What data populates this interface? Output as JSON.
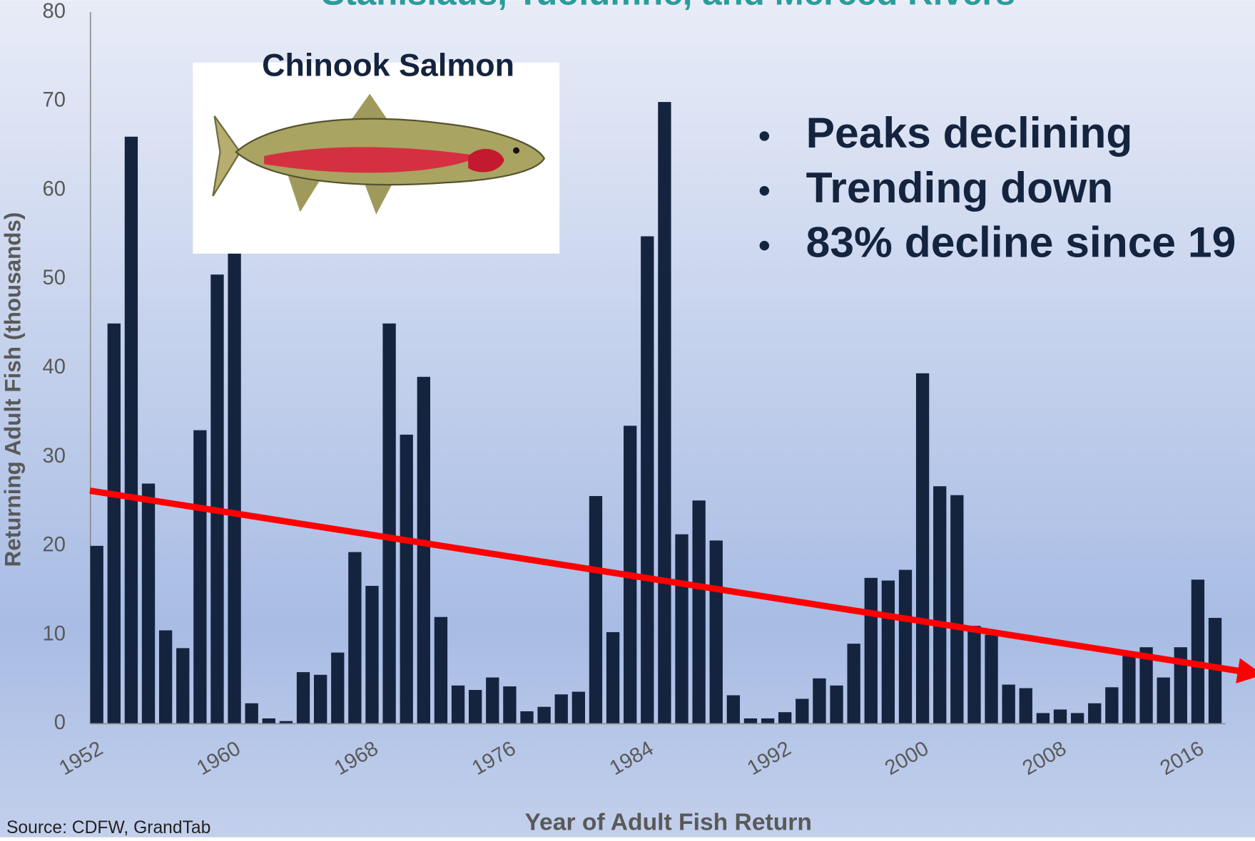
{
  "chart_data": {
    "type": "bar",
    "title": "Stanislaus, Tuolumne, and Merced Rivers",
    "inset_title": "Chinook Salmon",
    "bullets": [
      "Peaks declining",
      "Trending down",
      "83% decline since 19"
    ],
    "source": "Source: CDFW, GrandTab",
    "x_label": "Year of Adult Fish Return",
    "y_label": "Returning Adult Fish (thousands)",
    "x": [
      1952,
      1953,
      1954,
      1955,
      1956,
      1957,
      1958,
      1959,
      1960,
      1961,
      1962,
      1963,
      1964,
      1965,
      1966,
      1967,
      1968,
      1969,
      1970,
      1971,
      1972,
      1973,
      1974,
      1975,
      1976,
      1977,
      1978,
      1979,
      1980,
      1981,
      1982,
      1983,
      1984,
      1985,
      1986,
      1987,
      1988,
      1989,
      1990,
      1991,
      1992,
      1993,
      1994,
      1995,
      1996,
      1997,
      1998,
      1999,
      2000,
      2001,
      2002,
      2003,
      2004,
      2005,
      2006,
      2007,
      2008,
      2009,
      2010,
      2011,
      2012,
      2013,
      2014,
      2015,
      2016,
      2017
    ],
    "values": [
      20,
      45,
      66,
      27,
      10.5,
      8.5,
      33,
      50.5,
      55,
      2.3,
      0.6,
      0.3,
      5.8,
      5.5,
      8,
      19.3,
      15.5,
      45,
      32.5,
      39,
      12,
      4.3,
      3.8,
      5.2,
      4.2,
      1.4,
      1.9,
      3.3,
      3.6,
      25.6,
      10.3,
      33.5,
      54.8,
      69.9,
      21.3,
      25.1,
      20.6,
      3.2,
      0.6,
      0.6,
      1.3,
      2.8,
      5.1,
      4.3,
      9,
      16.4,
      16.1,
      17.3,
      39.4,
      26.7,
      25.7,
      11,
      10,
      4.4,
      4,
      1.2,
      1.6,
      1.2,
      2.3,
      4.1,
      7.8,
      8.6,
      5.2,
      8.6,
      16.2,
      11.9
    ],
    "color": "#14243f",
    "xlim": [
      1951.63,
      2017.6
    ],
    "xticks": [
      1952,
      1960,
      1968,
      1976,
      1984,
      1992,
      2000,
      2008,
      2016
    ],
    "ylim": [
      0,
      80
    ],
    "yticks": [
      0,
      10,
      20,
      30,
      40,
      50,
      60,
      70,
      80
    ],
    "grid": false,
    "trend_line": {
      "color": "#ff0000",
      "x": [
        1951.6,
        2019.5
      ],
      "y": [
        26.2,
        5.6
      ]
    }
  }
}
